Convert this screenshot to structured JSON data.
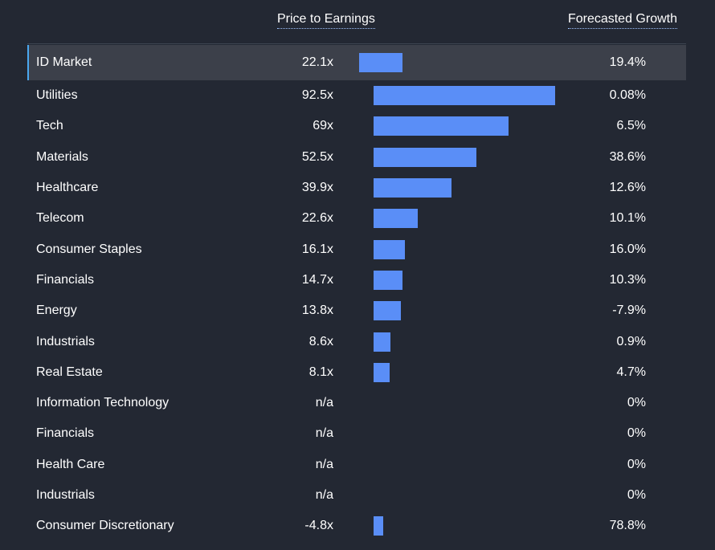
{
  "headers": {
    "pe": "Price to Earnings",
    "growth": "Forecasted Growth"
  },
  "chart_data": {
    "type": "bar",
    "orientation": "horizontal",
    "bar_color": "#5a8ef7",
    "highlight_color": "#4aa8f0",
    "rows": [
      {
        "label": "ID Market",
        "pe_label": "22.1x",
        "pe": 22.1,
        "growth": "19.4%",
        "highlight": true
      },
      {
        "label": "Utilities",
        "pe_label": "92.5x",
        "pe": 92.5,
        "growth": "0.08%"
      },
      {
        "label": "Tech",
        "pe_label": "69x",
        "pe": 69,
        "growth": "6.5%"
      },
      {
        "label": "Materials",
        "pe_label": "52.5x",
        "pe": 52.5,
        "growth": "38.6%"
      },
      {
        "label": "Healthcare",
        "pe_label": "39.9x",
        "pe": 39.9,
        "growth": "12.6%"
      },
      {
        "label": "Telecom",
        "pe_label": "22.6x",
        "pe": 22.6,
        "growth": "10.1%"
      },
      {
        "label": "Consumer Staples",
        "pe_label": "16.1x",
        "pe": 16.1,
        "growth": "16.0%"
      },
      {
        "label": "Financials",
        "pe_label": "14.7x",
        "pe": 14.7,
        "growth": "10.3%"
      },
      {
        "label": "Energy",
        "pe_label": "13.8x",
        "pe": 13.8,
        "growth": "-7.9%"
      },
      {
        "label": "Industrials",
        "pe_label": "8.6x",
        "pe": 8.6,
        "growth": "0.9%"
      },
      {
        "label": "Real Estate",
        "pe_label": "8.1x",
        "pe": 8.1,
        "growth": "4.7%"
      },
      {
        "label": "Information Technology",
        "pe_label": "n/a",
        "pe": null,
        "growth": "0%"
      },
      {
        "label": "Financials",
        "pe_label": "n/a",
        "pe": null,
        "growth": "0%"
      },
      {
        "label": "Health Care",
        "pe_label": "n/a",
        "pe": null,
        "growth": "0%"
      },
      {
        "label": "Industrials",
        "pe_label": "n/a",
        "pe": null,
        "growth": "0%"
      },
      {
        "label": "Consumer Discretionary",
        "pe_label": "-4.8x",
        "pe": -4.8,
        "growth": "78.8%"
      }
    ]
  }
}
